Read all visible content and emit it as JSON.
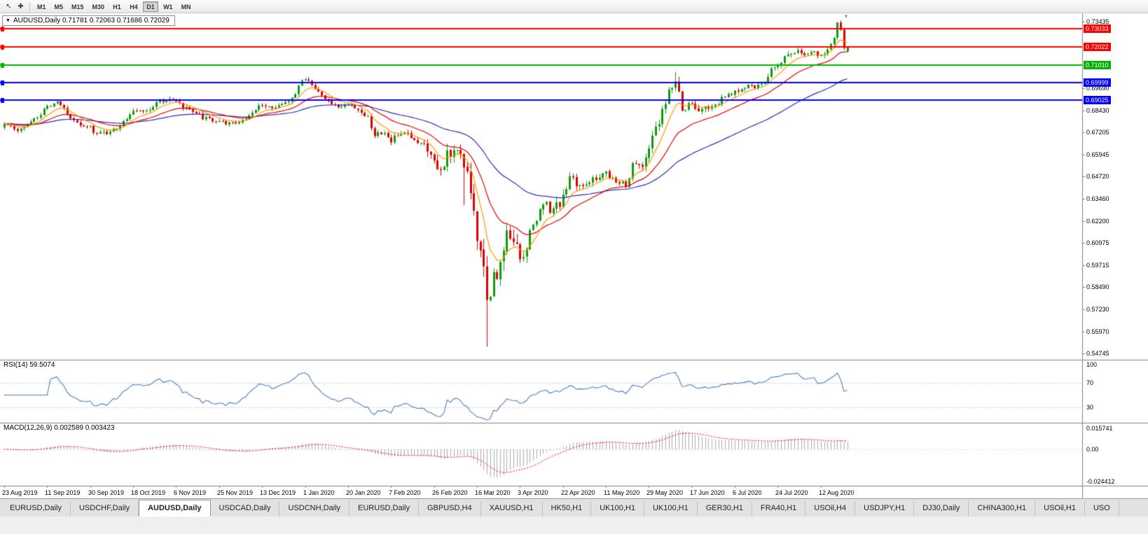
{
  "toolbar": {
    "icons": [
      {
        "name": "cursor-icon",
        "glyph": "↖"
      },
      {
        "name": "crosshair-icon",
        "glyph": "✚"
      }
    ],
    "timeframes": [
      {
        "label": "M1",
        "active": false
      },
      {
        "label": "M5",
        "active": false
      },
      {
        "label": "M15",
        "active": false
      },
      {
        "label": "M30",
        "active": false
      },
      {
        "label": "H1",
        "active": false
      },
      {
        "label": "H4",
        "active": false
      },
      {
        "label": "D1",
        "active": true
      },
      {
        "label": "W1",
        "active": false
      },
      {
        "label": "MN",
        "active": false
      }
    ]
  },
  "chart": {
    "symbol": "AUDUSD",
    "period": "Daily",
    "title_text": "AUDUSD,Daily  0.71781 0.72063 0.71686 0.72029",
    "ohlc": {
      "open": "0.71781",
      "high": "0.72063",
      "low": "0.71686",
      "close": "0.72029"
    }
  },
  "panes": {
    "rsi": {
      "label": "RSI(14) 59.5074",
      "line_color": "#4e7bc4",
      "levels": [
        70,
        30
      ],
      "axis": [
        {
          "text": "100",
          "value": 100
        },
        {
          "text": "70",
          "value": 70
        },
        {
          "text": "30",
          "value": 30
        }
      ]
    },
    "macd": {
      "label": "MACD(12,26,9) 0.002589 0.003423",
      "histogram_color": "#aaaaaa",
      "signal_color": "#ff0000",
      "axis": [
        {
          "text": "0.015741",
          "value": 0.015741
        },
        {
          "text": "0.00",
          "value": 0
        },
        {
          "text": "-0.024412",
          "value": -0.024412
        }
      ]
    }
  },
  "chart_data": {
    "type": "candlestick",
    "symbol": "AUDUSD",
    "timeframe": "D1",
    "current_bar": {
      "open": 0.71781,
      "high": 0.72063,
      "low": 0.71686,
      "close": 0.72029
    },
    "candle_count": 256,
    "x_tick_candle_step": 13,
    "x_labels": [
      "23 Aug 2019",
      "11 Sep 2019",
      "30 Sep 2019",
      "18 Oct 2019",
      "6 Nov 2019",
      "25 Nov 2019",
      "13 Dec 2019",
      "1 Jan 2020",
      "20 Jan 2020",
      "7 Feb 2020",
      "26 Feb 2020",
      "16 Mar 2020",
      "3 Apr 2020",
      "22 Apr 2020",
      "11 May 2020",
      "29 May 2020",
      "17 Jun 2020",
      "6 Jul 2020",
      "24 Jul 2020",
      "12 Aug 2020"
    ],
    "price_axis_ticks": [
      "0.73435",
      "0.69690",
      "0.68430",
      "0.67205",
      "0.65945",
      "0.64720",
      "0.63460",
      "0.62200",
      "0.60975",
      "0.59715",
      "0.58490",
      "0.57230",
      "0.55970",
      "0.54745"
    ],
    "horizontal_lines": [
      {
        "price": 0.73033,
        "label": "0.73033",
        "color": "#ff0000"
      },
      {
        "price": 0.72022,
        "label": "0.72022",
        "color": "#ff0000"
      },
      {
        "price": 0.7101,
        "label": "0.71010",
        "color": "#00b400"
      },
      {
        "price": 0.69999,
        "label": "0.69999",
        "color": "#0000ff"
      },
      {
        "price": 0.69025,
        "label": "0.69025",
        "color": "#0000ff"
      }
    ],
    "up_color": "#0e9a0e",
    "down_color": "#dd0000",
    "moving_averages": [
      {
        "period": 8,
        "color": "#ff9a00"
      },
      {
        "period": 21,
        "color": "#e60000"
      },
      {
        "period": 55,
        "color": "#2d2db8"
      }
    ],
    "price_anchors": [
      [
        0,
        0.676
      ],
      [
        4,
        0.673
      ],
      [
        9,
        0.679
      ],
      [
        13,
        0.686
      ],
      [
        16,
        0.6885
      ],
      [
        20,
        0.681
      ],
      [
        23,
        0.6765
      ],
      [
        26,
        0.675
      ],
      [
        28,
        0.6705
      ],
      [
        31,
        0.672
      ],
      [
        35,
        0.676
      ],
      [
        39,
        0.685
      ],
      [
        43,
        0.684
      ],
      [
        47,
        0.6895
      ],
      [
        50,
        0.6905
      ],
      [
        52,
        0.689
      ],
      [
        56,
        0.6845
      ],
      [
        60,
        0.6805
      ],
      [
        63,
        0.6785
      ],
      [
        65,
        0.678
      ],
      [
        69,
        0.677
      ],
      [
        73,
        0.68
      ],
      [
        78,
        0.688
      ],
      [
        81,
        0.686
      ],
      [
        85,
        0.688
      ],
      [
        88,
        0.694
      ],
      [
        90,
        0.702
      ],
      [
        92,
        0.7
      ],
      [
        95,
        0.6945
      ],
      [
        98,
        0.6895
      ],
      [
        101,
        0.687
      ],
      [
        104,
        0.688
      ],
      [
        107,
        0.6855
      ],
      [
        110,
        0.68
      ],
      [
        112,
        0.6695
      ],
      [
        114,
        0.672
      ],
      [
        117,
        0.6675
      ],
      [
        120,
        0.6715
      ],
      [
        124,
        0.6685
      ],
      [
        127,
        0.664
      ],
      [
        130,
        0.655
      ],
      [
        132,
        0.652
      ],
      [
        134,
        0.659
      ],
      [
        136,
        0.6625
      ],
      [
        138,
        0.6585
      ],
      [
        140,
        0.652
      ],
      [
        142,
        0.631
      ],
      [
        143,
        0.612
      ],
      [
        144,
        0.602
      ],
      [
        145,
        0.596
      ],
      [
        146,
        0.578
      ],
      [
        147,
        0.582
      ],
      [
        148,
        0.59
      ],
      [
        150,
        0.596
      ],
      [
        152,
        0.615
      ],
      [
        154,
        0.612
      ],
      [
        156,
        0.6
      ],
      [
        158,
        0.609
      ],
      [
        160,
        0.619
      ],
      [
        163,
        0.633
      ],
      [
        165,
        0.629
      ],
      [
        168,
        0.631
      ],
      [
        171,
        0.646
      ],
      [
        174,
        0.642
      ],
      [
        177,
        0.645
      ],
      [
        180,
        0.648
      ],
      [
        182,
        0.649
      ],
      [
        185,
        0.6445
      ],
      [
        188,
        0.642
      ],
      [
        190,
        0.654
      ],
      [
        193,
        0.651
      ],
      [
        195,
        0.665
      ],
      [
        198,
        0.6775
      ],
      [
        201,
        0.695
      ],
      [
        203,
        0.7
      ],
      [
        205,
        0.686
      ],
      [
        208,
        0.688
      ],
      [
        211,
        0.6845
      ],
      [
        214,
        0.6865
      ],
      [
        217,
        0.6905
      ],
      [
        221,
        0.695
      ],
      [
        224,
        0.6975
      ],
      [
        227,
        0.6985
      ],
      [
        230,
        0.7005
      ],
      [
        232,
        0.709
      ],
      [
        234,
        0.7105
      ],
      [
        237,
        0.7155
      ],
      [
        240,
        0.719
      ],
      [
        242,
        0.7145
      ],
      [
        245,
        0.7165
      ],
      [
        247,
        0.716
      ],
      [
        249,
        0.7185
      ],
      [
        251,
        0.7265
      ],
      [
        252,
        0.733
      ],
      [
        253,
        0.729
      ],
      [
        254,
        0.7195
      ],
      [
        255,
        0.72029
      ]
    ],
    "volatility_anchors": [
      [
        0,
        0.003
      ],
      [
        110,
        0.0032
      ],
      [
        125,
        0.005
      ],
      [
        138,
        0.0095
      ],
      [
        146,
        0.0135
      ],
      [
        152,
        0.011
      ],
      [
        160,
        0.008
      ],
      [
        170,
        0.006
      ],
      [
        185,
        0.0045
      ],
      [
        195,
        0.006
      ],
      [
        205,
        0.0055
      ],
      [
        215,
        0.004
      ],
      [
        235,
        0.0038
      ],
      [
        255,
        0.0035
      ]
    ],
    "special_bars": [
      {
        "i": 139,
        "low": 0.631
      },
      {
        "i": 146,
        "low": 0.5513
      },
      {
        "i": 203,
        "high": 0.706
      },
      {
        "i": 252,
        "high": 0.7343
      }
    ],
    "rsi": {
      "period": 14,
      "current": "59.5074"
    },
    "macd": {
      "fast": 12,
      "slow": 26,
      "signal": 9,
      "current_macd": "0.002589",
      "current_signal": "0.003423"
    }
  },
  "tabs": [
    {
      "label": "EURUSD,Daily",
      "active": false
    },
    {
      "label": "USDCHF,Daily",
      "active": false
    },
    {
      "label": "AUDUSD,Daily",
      "active": true
    },
    {
      "label": "USDCAD,Daily",
      "active": false
    },
    {
      "label": "USDCNH,Daily",
      "active": false
    },
    {
      "label": "EURUSD,Daily",
      "active": false
    },
    {
      "label": "GBPUSD,H4",
      "active": false
    },
    {
      "label": "XAUUSD,H1",
      "active": false
    },
    {
      "label": "HK50,H1",
      "active": false
    },
    {
      "label": "UK100,H1",
      "active": false
    },
    {
      "label": "UK100,H1",
      "active": false
    },
    {
      "label": "GER30,H1",
      "active": false
    },
    {
      "label": "FRA40,H1",
      "active": false
    },
    {
      "label": "USOil,H4",
      "active": false
    },
    {
      "label": "USDJPY,H1",
      "active": false
    },
    {
      "label": "DJ30,Daily",
      "active": false
    },
    {
      "label": "CHINA300,H1",
      "active": false
    },
    {
      "label": "USOil,H1",
      "active": false
    },
    {
      "label": "USO",
      "active": false
    }
  ],
  "shift_marker_glyph": "▼"
}
